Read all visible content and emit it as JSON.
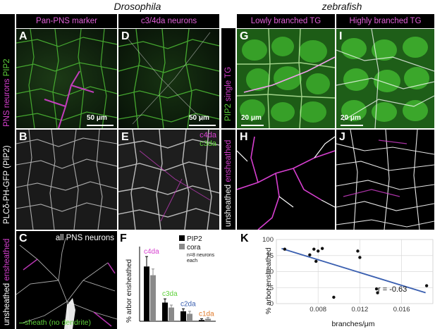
{
  "titles": {
    "left": "Drosophila",
    "right": "zebrafish"
  },
  "headers": {
    "a": "Pan-PNS marker",
    "d": "c3/4da neurons",
    "g": "Lowly branched TG",
    "i": "Highly branched TG"
  },
  "side_labels": {
    "row1_pns": "PNS neurons",
    "row1_pip2": "PIP2",
    "row2": "PLCδ-PH-GFP (PIP2)",
    "row3_unsheathed": "unsheathed",
    "row3_ensheathed": "ensheathed",
    "zebra_pip2": "PIP2",
    "zebra_single": "single TG",
    "zebra_unsheathed": "unsheathed",
    "zebra_ensheathed": "ensheathed"
  },
  "panel_letters": [
    "A",
    "B",
    "C",
    "D",
    "E",
    "F",
    "G",
    "H",
    "I",
    "J",
    "K"
  ],
  "scalebars": {
    "a": "50 μm",
    "d": "50 μm",
    "g": "20 μm",
    "i": "20 μm"
  },
  "panel_e_legend": {
    "c4da": "c4da",
    "c3da": "c3da"
  },
  "panel_c": {
    "all": "all PNS neurons",
    "sheath": "sheath (no dendrite)"
  },
  "colors": {
    "magenta": "#d63fcf",
    "green": "#5ed13a",
    "blue": "#3a5fb0",
    "c2da": "#3a5fb0",
    "c1da": "#e07a2a"
  },
  "chart_data": [
    {
      "type": "bar",
      "ylabel": "% arbor ensheathed",
      "categories": [
        "c4da",
        "c3da",
        "c2da",
        "c1da"
      ],
      "category_colors": [
        "#d63fcf",
        "#5ed13a",
        "#3a5fb0",
        "#e07a2a"
      ],
      "legend": [
        "PIP2",
        "cora"
      ],
      "legend_note": "n=8 neurons each",
      "series": [
        {
          "name": "PIP2",
          "values": [
            44,
            15,
            8,
            1
          ],
          "errors": [
            8,
            3,
            2,
            1
          ]
        },
        {
          "name": "cora",
          "values": [
            37,
            11,
            6,
            2
          ],
          "errors": [
            5,
            2,
            2,
            1
          ]
        }
      ],
      "ylim": [
        0,
        60
      ]
    },
    {
      "type": "scatter",
      "xlabel": "branches/μm",
      "ylabel": "% arbor ensheathed",
      "xlim": [
        0.004,
        0.019
      ],
      "ylim": [
        0,
        100
      ],
      "xticks": [
        0.008,
        0.012,
        0.016
      ],
      "yticks": [
        0,
        25,
        50,
        75,
        100
      ],
      "xticklabels": [
        "0.008",
        "0.012",
        "0.016"
      ],
      "yticklabels": [
        "0",
        "25",
        "50",
        "75",
        "100"
      ],
      "annotation": "r = -0.63",
      "points": [
        [
          0.0048,
          85
        ],
        [
          0.0072,
          76
        ],
        [
          0.0076,
          85
        ],
        [
          0.0078,
          66
        ],
        [
          0.008,
          82
        ],
        [
          0.0084,
          86
        ],
        [
          0.0095,
          10
        ],
        [
          0.0118,
          82
        ],
        [
          0.012,
          72
        ],
        [
          0.0136,
          23
        ],
        [
          0.0137,
          17
        ],
        [
          0.0184,
          28
        ]
      ],
      "fit": [
        [
          0.0045,
          86
        ],
        [
          0.0183,
          17
        ]
      ]
    }
  ]
}
